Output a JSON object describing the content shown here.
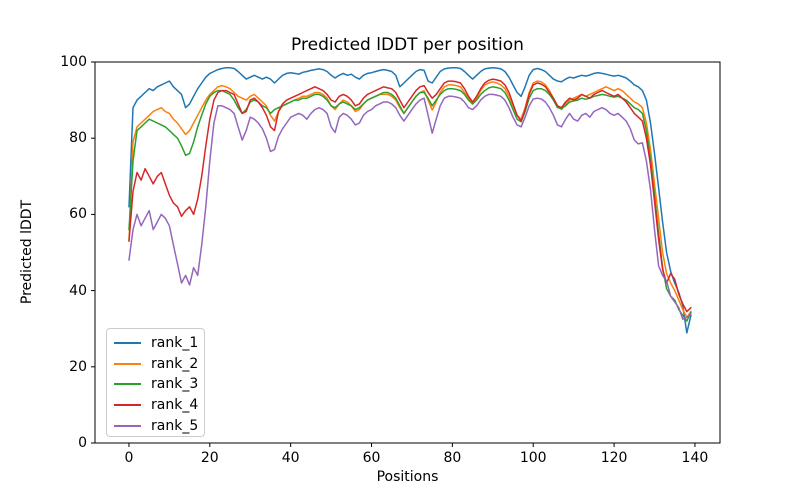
{
  "figure": {
    "background": "#ffffff"
  },
  "chart_data": {
    "type": "line",
    "title": "Predicted lDDT per position",
    "xlabel": "Positions",
    "ylabel": "Predicted lDDT",
    "xlim": [
      -8.4,
      146.2
    ],
    "ylim": [
      0,
      100
    ],
    "xticks": [
      0,
      20,
      40,
      60,
      80,
      100,
      120,
      140
    ],
    "yticks": [
      0,
      20,
      40,
      60,
      80,
      100
    ],
    "grid": false,
    "legend_position": "lower left",
    "x_start": 0,
    "x_step": 1,
    "n_points": 140,
    "line_width": 1.5,
    "series": [
      {
        "name": "rank_1",
        "color": "#1f77b4",
        "values": [
          62,
          88,
          90,
          91,
          92,
          93,
          92.5,
          93.5,
          94,
          94.5,
          95,
          93.5,
          92.5,
          91.5,
          88,
          89,
          91,
          93,
          94.5,
          96,
          97,
          97.5,
          98,
          98.3,
          98.5,
          98.5,
          98.3,
          97.5,
          96.5,
          95.5,
          96,
          96.5,
          96,
          95.5,
          96,
          95.5,
          94.5,
          95.5,
          96.5,
          97,
          97.2,
          97,
          96.8,
          97.3,
          97.5,
          97.8,
          98,
          98.2,
          98,
          97.5,
          96.5,
          95.8,
          96.5,
          97,
          96.5,
          96.8,
          96,
          95.5,
          96.5,
          97,
          97.2,
          97.5,
          97.8,
          98,
          97.8,
          97.5,
          96.5,
          93.5,
          94.5,
          95.5,
          96.5,
          97.5,
          98,
          97.8,
          95,
          94.5,
          96,
          97.5,
          98.2,
          98.4,
          98.5,
          98.5,
          98.3,
          97.5,
          96.5,
          95.5,
          96.5,
          97.5,
          98.2,
          98.4,
          98.5,
          98.4,
          98.2,
          97.5,
          96,
          94,
          92,
          91,
          93.5,
          96.5,
          98,
          98.3,
          98,
          97.5,
          96.5,
          95.5,
          95,
          94.8,
          95.5,
          96,
          95.8,
          96.2,
          96.5,
          96.3,
          96.6,
          97,
          97.2,
          97,
          96.8,
          96.5,
          96.3,
          96.5,
          96.2,
          95.8,
          95,
          94,
          93.5,
          92.5,
          90,
          84,
          76,
          67,
          58,
          50,
          45,
          42,
          39.5,
          36,
          28.9,
          33.5
        ]
      },
      {
        "name": "rank_2",
        "color": "#ff7f0e",
        "values": [
          53,
          79,
          83,
          84,
          85,
          86,
          87,
          87.5,
          88,
          87,
          86.5,
          85,
          84,
          82.5,
          81,
          82,
          84,
          86,
          88,
          90,
          91.5,
          92.5,
          93.5,
          93.8,
          93.5,
          93,
          92,
          91,
          90.5,
          90,
          91,
          91.5,
          90.5,
          89.5,
          88.5,
          86,
          84.5,
          87,
          88.5,
          89,
          89.5,
          90,
          90.5,
          91,
          91,
          91.5,
          92,
          92,
          91.5,
          90.5,
          88.5,
          87.5,
          89,
          90,
          89.5,
          88.5,
          87,
          87.5,
          89,
          90,
          90.5,
          91,
          91.5,
          91.5,
          91.5,
          91,
          90,
          88,
          86.5,
          88,
          89.5,
          91,
          92,
          92.5,
          90,
          87.4,
          89.5,
          92,
          93.5,
          94,
          94,
          93.8,
          93.5,
          92,
          90.5,
          89,
          90.5,
          92.5,
          94,
          94.5,
          94.8,
          94.5,
          94,
          93,
          91,
          88.5,
          86,
          85,
          88,
          92,
          94.5,
          95,
          94.8,
          94,
          92.5,
          90.5,
          88.5,
          87.5,
          89,
          90,
          90.5,
          91,
          91.5,
          91,
          91.5,
          92,
          92.5,
          93,
          93.5,
          93,
          92.5,
          93,
          92.5,
          91.5,
          90.5,
          89.5,
          89,
          88,
          84,
          77,
          68,
          59,
          50,
          44.5,
          42,
          40,
          37.5,
          35,
          33,
          34.5
        ]
      },
      {
        "name": "rank_3",
        "color": "#2ca02c",
        "values": [
          56,
          74,
          82,
          83,
          84,
          85,
          84.5,
          84,
          83.5,
          83,
          82,
          81,
          80,
          78,
          75.5,
          76,
          79,
          83,
          86,
          89,
          91,
          92,
          92.5,
          92.5,
          92,
          91.5,
          90,
          88,
          86.5,
          87.5,
          89.5,
          90,
          89.5,
          88.5,
          88,
          86.5,
          87.5,
          88,
          88.5,
          89,
          89.5,
          90,
          90,
          90.5,
          90.5,
          91,
          91.5,
          91.5,
          91,
          90,
          88.5,
          88,
          89,
          89.5,
          89,
          88.5,
          87.5,
          88,
          89,
          90,
          90.5,
          91,
          91.5,
          92,
          92,
          91.5,
          90.5,
          88.5,
          86.5,
          88,
          89.5,
          91,
          92,
          92,
          90.5,
          88.5,
          90,
          91.5,
          92.5,
          93,
          93,
          92.8,
          92.5,
          91.5,
          90,
          89,
          90,
          91.5,
          92.5,
          93.2,
          93.5,
          93.3,
          93,
          92,
          90,
          87.5,
          85,
          84.3,
          87,
          90.5,
          92.5,
          93,
          93,
          92.5,
          91.5,
          90,
          88,
          87.8,
          88.5,
          89.5,
          89.8,
          90,
          90.5,
          90.2,
          90.5,
          91,
          91.2,
          91.5,
          91.3,
          91,
          90.8,
          91,
          90.5,
          90,
          89,
          88,
          87.5,
          86.5,
          82,
          74.5,
          65,
          55,
          46,
          40.5,
          38.5,
          37.5,
          35,
          33.5,
          32,
          34.3
        ]
      },
      {
        "name": "rank_4",
        "color": "#d62728",
        "values": [
          53,
          66,
          71,
          69,
          72,
          70,
          68,
          70,
          71,
          68,
          65,
          63,
          62,
          59.5,
          61,
          62,
          60,
          64,
          70,
          78,
          85,
          90,
          92,
          92.5,
          92.5,
          92,
          91.5,
          89,
          86.5,
          87,
          90,
          90.5,
          89.5,
          88,
          86,
          83,
          82,
          87,
          89,
          90,
          90.5,
          91,
          91.5,
          92,
          92.5,
          93,
          93.5,
          93,
          92.5,
          91.5,
          90,
          89.5,
          91,
          91.5,
          91,
          90,
          88.5,
          89,
          90.5,
          91.5,
          92,
          92.5,
          93,
          93.5,
          93.2,
          93,
          92,
          90,
          88,
          89.5,
          91,
          92.5,
          93.5,
          93.8,
          92,
          90.5,
          91.5,
          93,
          94.5,
          95,
          95,
          94.8,
          94.5,
          93,
          91,
          89.5,
          91,
          93,
          94.5,
          95.2,
          95.5,
          95.3,
          95,
          94,
          92,
          89,
          86,
          84.5,
          87.5,
          91.5,
          94,
          94.5,
          94.2,
          93.5,
          92,
          90.5,
          88.5,
          88,
          89.5,
          90.5,
          90,
          90.5,
          91.5,
          91,
          90.5,
          91.5,
          92,
          92.5,
          92,
          91.5,
          91,
          91.5,
          90.5,
          89.5,
          88,
          86.5,
          85.5,
          84.5,
          80,
          73,
          63.5,
          53.5,
          45.5,
          42,
          44.5,
          43,
          39,
          36.5,
          34.5,
          35.5
        ]
      },
      {
        "name": "rank_5",
        "color": "#9467bd",
        "values": [
          48,
          56,
          60,
          57,
          59,
          61,
          56,
          58,
          60,
          59,
          57,
          52,
          47,
          42,
          44,
          41.5,
          46,
          44,
          52,
          62,
          74,
          84,
          88.5,
          88.5,
          88,
          87.5,
          86.5,
          83,
          79.5,
          82,
          85.5,
          85,
          84,
          82.5,
          80,
          76.5,
          77,
          80.5,
          82.5,
          84,
          85.5,
          86,
          86.5,
          86,
          85,
          86.5,
          87.5,
          88,
          87.5,
          86.5,
          83,
          81.5,
          85.5,
          86.5,
          86,
          85,
          83.5,
          84,
          86,
          87,
          87.5,
          88.5,
          89,
          89.5,
          89.5,
          89,
          88,
          86,
          84.5,
          86,
          87.5,
          89,
          90,
          90.5,
          86,
          81.3,
          85,
          88.5,
          90.5,
          91,
          91,
          90.8,
          90.5,
          89.5,
          88,
          87.5,
          88.5,
          90,
          91,
          91.5,
          91.5,
          91.3,
          91,
          90,
          88,
          85.5,
          83.5,
          83,
          85.5,
          88.5,
          90.3,
          90.5,
          90.3,
          89.5,
          88,
          86,
          83.5,
          83,
          85,
          86.5,
          85,
          84.5,
          86,
          86.5,
          85.5,
          87,
          87.5,
          88,
          87.5,
          86.5,
          86,
          86.5,
          85.5,
          84.5,
          82.5,
          79.5,
          78.5,
          78.8,
          74,
          66.5,
          56,
          46.5,
          44,
          42.5,
          38.5,
          37,
          35.5,
          32.5,
          33,
          33.8
        ]
      }
    ]
  }
}
